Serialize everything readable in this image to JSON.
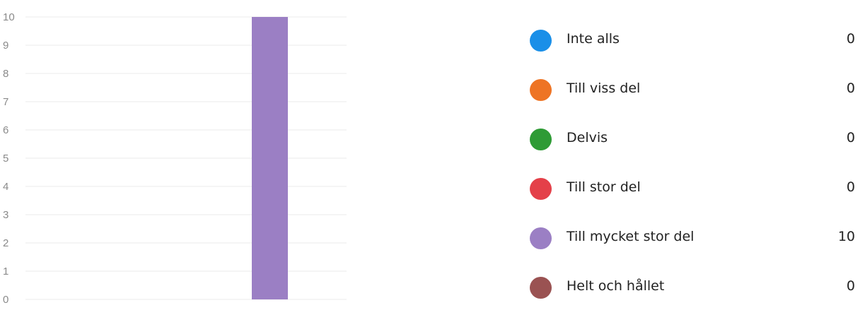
{
  "chart_data": {
    "type": "bar",
    "categories": [
      "Inte alls",
      "Till viss del",
      "Delvis",
      "Till stor del",
      "Till mycket stor del",
      "Helt och hållet"
    ],
    "values": [
      0,
      0,
      0,
      0,
      10,
      0
    ],
    "colors": [
      "#1a8fe8",
      "#ee7424",
      "#2e9b35",
      "#e44049",
      "#9b7fc4",
      "#9a5252"
    ],
    "ylim": [
      0,
      10
    ],
    "yticks": [
      "0",
      "1",
      "2",
      "3",
      "4",
      "5",
      "6",
      "7",
      "8",
      "9",
      "10"
    ],
    "grid": true,
    "legend_position": "right"
  },
  "legend": {
    "items": [
      {
        "label": "Inte alls",
        "count": "0"
      },
      {
        "label": "Till viss del",
        "count": "0"
      },
      {
        "label": "Delvis",
        "count": "0"
      },
      {
        "label": "Till stor del",
        "count": "0"
      },
      {
        "label": "Till mycket stor del",
        "count": "10"
      },
      {
        "label": "Helt och hållet",
        "count": "0"
      }
    ]
  }
}
